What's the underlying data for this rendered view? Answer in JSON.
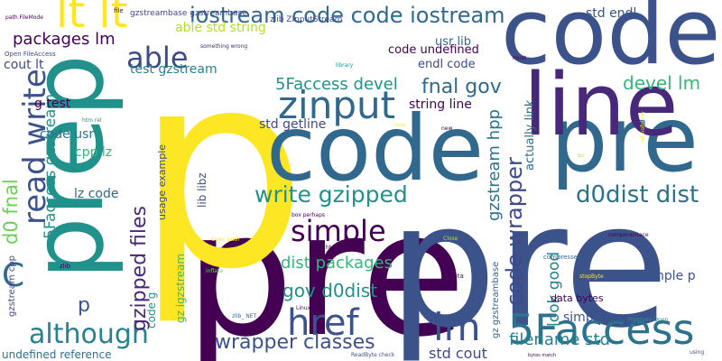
{
  "words": [
    {
      "text": "pre",
      "color": "#440154"
    },
    {
      "text": "p",
      "color": "#fde725"
    },
    {
      "text": "pre",
      "color": "#3b528b"
    },
    {
      "text": "code",
      "color": "#3b528b"
    },
    {
      "text": "code",
      "color": "#31688e"
    },
    {
      "text": "pre",
      "color": "#31688e"
    },
    {
      "text": "prep",
      "color": "#21918c"
    },
    {
      "text": "line",
      "color": "#482878"
    },
    {
      "text": "lt lt",
      "color": "#fde725"
    },
    {
      "text": "iostream code code iostream",
      "color": "#31688e"
    },
    {
      "text": "zinput",
      "color": "#31688e"
    },
    {
      "text": "read write",
      "color": "#3b528b"
    },
    {
      "text": "able",
      "color": "#3e4a89"
    },
    {
      "text": "5Faccess",
      "color": "#2c728e"
    },
    {
      "text": "lm",
      "color": "#3b528b"
    },
    {
      "text": "href",
      "color": "#3b528b"
    },
    {
      "text": "although",
      "color": "#26828e"
    },
    {
      "text": "simple",
      "color": "#440154"
    },
    {
      "text": "write gzipped",
      "color": "#21918c"
    },
    {
      "text": "gzipped files",
      "color": "#482878"
    },
    {
      "text": "d0dist dist",
      "color": "#2c728e"
    },
    {
      "text": "code wrapper",
      "color": "#3e4a89"
    },
    {
      "text": "wrapper classes",
      "color": "#3b528b"
    },
    {
      "text": "fnal gov",
      "color": "#31688e"
    },
    {
      "text": "5Faccess devel",
      "color": "#21918c"
    },
    {
      "text": "gov d0dist",
      "color": "#21918c"
    },
    {
      "text": "dist packages",
      "color": "#35b779"
    },
    {
      "text": "look good",
      "color": "#26828e"
    },
    {
      "text": "filename std",
      "color": "#26828e"
    },
    {
      "text": "std cout",
      "color": "#3e4a89"
    },
    {
      "text": "packages lm",
      "color": "#440154"
    },
    {
      "text": "gzstream hpp",
      "color": "#2c728e"
    },
    {
      "text": "d0 fnal",
      "color": "#6ece58"
    },
    {
      "text": "C",
      "color": "#31688e"
    },
    {
      "text": "5Faccess gzstream",
      "color": "#21918c"
    },
    {
      "text": "devel lm",
      "color": "#35b779"
    },
    {
      "text": "able std string",
      "color": "#b5de2b"
    },
    {
      "text": "std endl",
      "color": "#3b528b"
    },
    {
      "text": "std getline",
      "color": "#3e4a89"
    },
    {
      "text": "string line",
      "color": "#440154"
    },
    {
      "text": "code undefined",
      "color": "#440154"
    },
    {
      "text": "endl code",
      "color": "#3e4a89"
    },
    {
      "text": "usr lib",
      "color": "#31688e"
    },
    {
      "text": "test gzstream",
      "color": "#26828e"
    },
    {
      "text": "cout lt",
      "color": "#3e4a89"
    },
    {
      "text": "g test",
      "color": "#440154"
    },
    {
      "text": "code usr",
      "color": "#2c728e"
    },
    {
      "text": "cpp lz",
      "color": "#35b779"
    },
    {
      "text": "lz code",
      "color": "#31688e"
    },
    {
      "text": "usage example",
      "color": "#3e4a89"
    },
    {
      "text": "lib libz",
      "color": "#3b528b"
    },
    {
      "text": "gz igzstream",
      "color": "#35b779"
    },
    {
      "text": "code g",
      "color": "#21918c"
    },
    {
      "text": "gzstream cpp",
      "color": "#3e4a89"
    },
    {
      "text": "undefined reference",
      "color": "#2c728e"
    },
    {
      "text": "simple usage",
      "color": "#3b528b"
    },
    {
      "text": "example p",
      "color": "#3b528b"
    },
    {
      "text": "gz gzstreambase",
      "color": "#31688e"
    },
    {
      "text": "actually link",
      "color": "#31688e"
    },
    {
      "text": "data bytes",
      "color": "#440154"
    },
    {
      "text": "p",
      "color": "#3b528b"
    },
    {
      "text": "gzstreambase gzstreambase",
      "color": "#3e4a89"
    },
    {
      "text": "zlib ZInputStream",
      "color": "#3e4a89"
    },
    {
      "text": "Open FileAccess",
      "color": "#3e4a89"
    },
    {
      "text": "path FileMode",
      "color": "#440154"
    },
    {
      "text": "file",
      "color": "#440154"
    },
    {
      "text": "something wrong",
      "color": "#482878"
    },
    {
      "text": "library",
      "color": "#21918c"
    },
    {
      "text": "must",
      "color": "#440154"
    },
    {
      "text": "htm rel",
      "color": "#21918c"
    },
    {
      "text": "new",
      "color": "#440154"
    },
    {
      "text": "code",
      "color": "#fde725"
    },
    {
      "text": "rel nofollow",
      "color": "#fde725"
    },
    {
      "text": "Src",
      "color": "#b5de2b"
    },
    {
      "text": "box perhaps",
      "color": "#440154"
    },
    {
      "text": "NET htm",
      "color": "#440154"
    },
    {
      "text": "Open path",
      "color": "#fde725"
    },
    {
      "text": "componentace",
      "color": "#440154"
    },
    {
      "text": "compressed",
      "color": "#31688e"
    },
    {
      "text": "Close",
      "color": "#b5de2b"
    },
    {
      "text": "zlib",
      "color": "#440154"
    },
    {
      "text": "inflate",
      "color": "#6ece58"
    },
    {
      "text": "data",
      "color": "#440154"
    },
    {
      "text": "stopByte",
      "color": "#fde725"
    },
    {
      "text": "zlib_ NET",
      "color": "#31688e"
    },
    {
      "text": "Linux box",
      "color": "#440154"
    },
    {
      "text": "FileMode Open",
      "color": "#21918c"
    },
    {
      "text": "ReadByte check",
      "color": "#3b528b"
    },
    {
      "text": "bytes match",
      "color": "#440154"
    },
    {
      "text": "using",
      "color": "#3b528b"
    }
  ]
}
